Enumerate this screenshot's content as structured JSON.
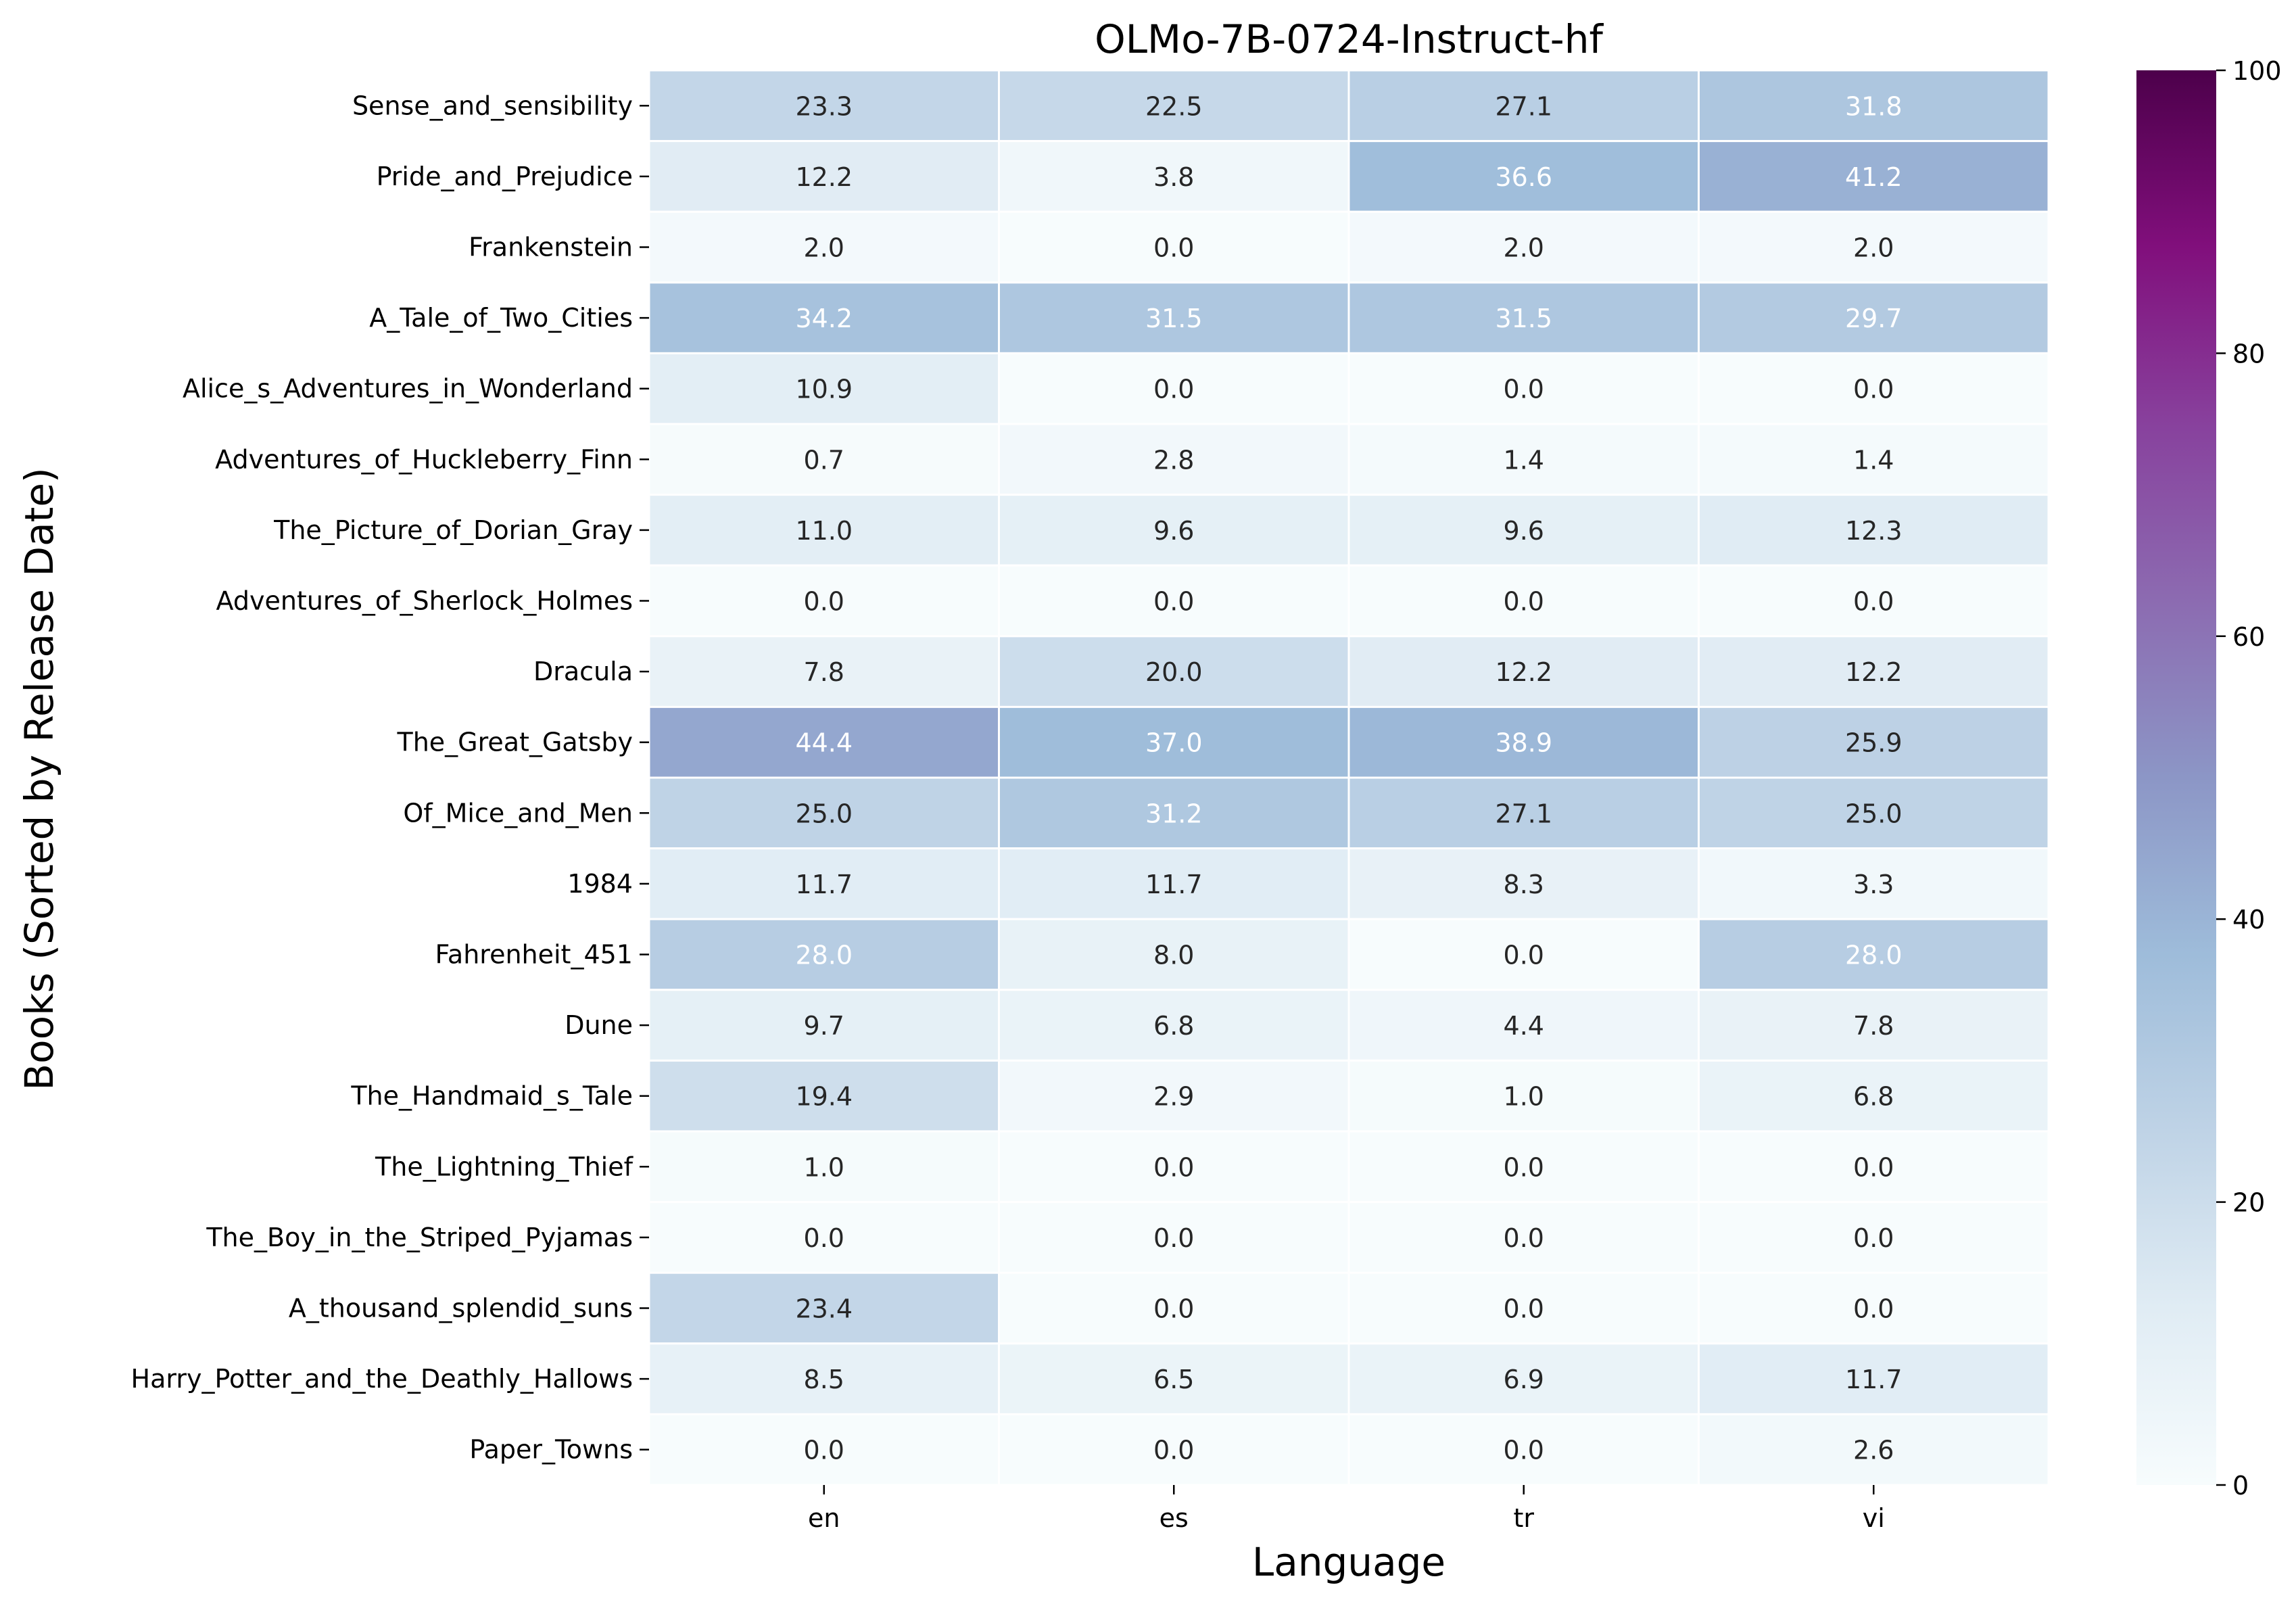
{
  "chart_data": {
    "type": "heatmap",
    "title": "OLMo-7B-0724-Instruct-hf",
    "xlabel": "Language",
    "ylabel": "Books (Sorted by Release Date)",
    "columns": [
      "en",
      "es",
      "tr",
      "vi"
    ],
    "rows": [
      "Sense_and_sensibility",
      "Pride_and_Prejudice",
      "Frankenstein",
      "A_Tale_of_Two_Cities",
      "Alice_s_Adventures_in_Wonderland",
      "Adventures_of_Huckleberry_Finn",
      "The_Picture_of_Dorian_Gray",
      "Adventures_of_Sherlock_Holmes",
      "Dracula",
      "The_Great_Gatsby",
      "Of_Mice_and_Men",
      "1984",
      "Fahrenheit_451",
      "Dune",
      "The_Handmaid_s_Tale",
      "The_Lightning_Thief",
      "The_Boy_in_the_Striped_Pyjamas",
      "A_thousand_splendid_suns",
      "Harry_Potter_and_the_Deathly_Hallows",
      "Paper_Towns"
    ],
    "values": [
      [
        23.3,
        22.5,
        27.1,
        31.8
      ],
      [
        12.2,
        3.8,
        36.6,
        41.2
      ],
      [
        2.0,
        0.0,
        2.0,
        2.0
      ],
      [
        34.2,
        31.5,
        31.5,
        29.7
      ],
      [
        10.9,
        0.0,
        0.0,
        0.0
      ],
      [
        0.7,
        2.8,
        1.4,
        1.4
      ],
      [
        11.0,
        9.6,
        9.6,
        12.3
      ],
      [
        0.0,
        0.0,
        0.0,
        0.0
      ],
      [
        7.8,
        20.0,
        12.2,
        12.2
      ],
      [
        44.4,
        37.0,
        38.9,
        25.9
      ],
      [
        25.0,
        31.2,
        27.1,
        25.0
      ],
      [
        11.7,
        11.7,
        8.3,
        3.3
      ],
      [
        28.0,
        8.0,
        0.0,
        28.0
      ],
      [
        9.7,
        6.8,
        4.4,
        7.8
      ],
      [
        19.4,
        2.9,
        1.0,
        6.8
      ],
      [
        1.0,
        0.0,
        0.0,
        0.0
      ],
      [
        0.0,
        0.0,
        0.0,
        0.0
      ],
      [
        23.4,
        0.0,
        0.0,
        0.0
      ],
      [
        8.5,
        6.5,
        6.9,
        11.7
      ],
      [
        0.0,
        0.0,
        0.0,
        2.6
      ]
    ],
    "colorbar": {
      "min": 0,
      "max": 100,
      "ticks": [
        0,
        20,
        40,
        60,
        80,
        100
      ],
      "colormap": "BuPu",
      "stops": [
        "#f7fcfd",
        "#e0ecf4",
        "#bfd3e6",
        "#9ebcda",
        "#8c96c6",
        "#8c6bb1",
        "#88419d",
        "#810f7c",
        "#4d004b"
      ]
    }
  }
}
